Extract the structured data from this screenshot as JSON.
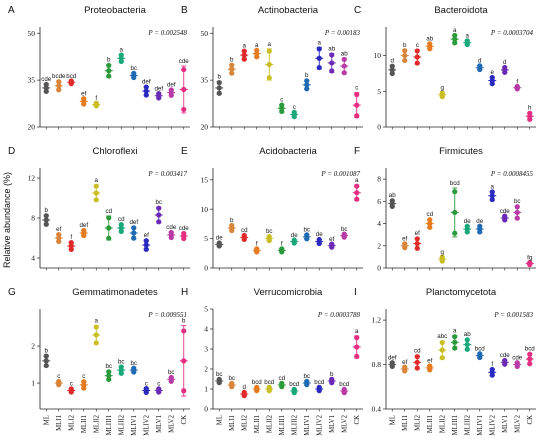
{
  "figure": {
    "ylabel": "Relative abundance (%)"
  },
  "treatments": [
    "ML",
    "MLI1",
    "MLI2",
    "MLII1",
    "MLII2",
    "MLIII1",
    "MLIII2",
    "MLIV1",
    "MLIV2",
    "MLV1",
    "MLV2",
    "CK"
  ],
  "colors": [
    "#555555",
    "#d8853a",
    "#e02a2a",
    "#e57a1e",
    "#c9bf24",
    "#2a9a3a",
    "#18a87a",
    "#1f6ab3",
    "#2a2ac0",
    "#6a2ab5",
    "#b93aa6",
    "#e52e82"
  ],
  "chart_data": [
    {
      "type": "scatter",
      "panel": "A",
      "title": "Proteobacteria",
      "p": "P = 0.002548",
      "ylim": [
        20,
        52
      ],
      "yticks": [
        20,
        35,
        50
      ],
      "means": [
        32.5,
        33.2,
        34.3,
        28.2,
        27.2,
        38.0,
        42.0,
        36.5,
        31.5,
        30.0,
        31.0,
        32.0
      ],
      "spread": [
        1.3,
        1.5,
        0.5,
        1.0,
        0.5,
        2.0,
        1.2,
        0.8,
        1.5,
        0.8,
        1.0,
        7.5
      ],
      "labels": [
        "cde",
        "bcde",
        "bcd",
        "ef",
        "f",
        "b",
        "a",
        "bc",
        "def",
        "def",
        "def",
        "cde"
      ]
    },
    {
      "type": "scatter",
      "panel": "B",
      "title": "Actinobacteria",
      "p": "P = 0.00183",
      "ylim": [
        20,
        52
      ],
      "yticks": [
        20,
        35,
        50
      ],
      "means": [
        32.5,
        38.5,
        43.0,
        43.5,
        40.0,
        26.0,
        24.0,
        33.5,
        42.0,
        40.5,
        39.5,
        27.0
      ],
      "spread": [
        2.0,
        1.5,
        1.5,
        1.2,
        5.0,
        1.2,
        0.8,
        1.5,
        3.5,
        3.0,
        2.5,
        4.0
      ],
      "labels": [
        "b",
        "b",
        "a",
        "a",
        "a",
        "c",
        "c",
        "b",
        "a",
        "ab",
        "ab",
        "c"
      ]
    },
    {
      "type": "scatter",
      "panel": "C",
      "title": "Bacteroidota",
      "p": "P = 0.0003704",
      "ylim": [
        0,
        14
      ],
      "yticks": [
        0,
        5,
        10
      ],
      "means": [
        8.0,
        10.0,
        9.8,
        11.3,
        4.5,
        12.3,
        11.8,
        8.3,
        6.5,
        8.0,
        5.5,
        1.5
      ],
      "spread": [
        0.6,
        0.8,
        1.0,
        0.4,
        0.3,
        0.6,
        0.3,
        0.3,
        0.5,
        0.4,
        0.2,
        0.5
      ],
      "labels": [
        "d",
        "b",
        "c",
        "ab",
        "g",
        "a",
        "a",
        "d",
        "e",
        "d",
        "f",
        "h"
      ]
    },
    {
      "type": "scatter",
      "panel": "D",
      "title": "Chloroflexi",
      "p": "P = 0.003417",
      "ylim": [
        3,
        13
      ],
      "yticks": [
        4,
        8,
        12
      ],
      "means": [
        7.8,
        6.0,
        5.2,
        6.5,
        10.5,
        7.0,
        7.0,
        6.5,
        5.3,
        8.3,
        6.3,
        6.2
      ],
      "spread": [
        0.5,
        0.4,
        0.4,
        0.3,
        0.8,
        1.2,
        0.4,
        0.6,
        0.5,
        0.8,
        0.3,
        0.3
      ],
      "labels": [
        "b",
        "ef",
        "f",
        "def",
        "a",
        "cd",
        "cd",
        "def",
        "ef",
        "bc",
        "cde",
        "cde"
      ]
    },
    {
      "type": "scatter",
      "panel": "E",
      "title": "Acidobacteria",
      "p": "P = 0.001087",
      "ylim": [
        0,
        17
      ],
      "yticks": [
        0,
        5,
        10,
        15
      ],
      "means": [
        4.0,
        6.8,
        5.2,
        3.0,
        5.0,
        3.0,
        4.5,
        5.3,
        4.5,
        3.8,
        5.5,
        12.8
      ],
      "spread": [
        0.3,
        0.5,
        0.4,
        0.3,
        0.4,
        0.3,
        0.3,
        0.4,
        0.4,
        0.3,
        0.3,
        1.3
      ],
      "labels": [
        "de",
        "b",
        "cd",
        "f",
        "bc",
        "f",
        "de",
        "bc",
        "de",
        "ef",
        "bc",
        "a"
      ]
    },
    {
      "type": "scatter",
      "panel": "F",
      "title": "Firmicutes",
      "p": "P = 0.0008455",
      "ylim": [
        0,
        9
      ],
      "yticks": [
        0,
        2,
        4,
        6,
        8
      ],
      "means": [
        5.8,
        2.0,
        2.2,
        4.0,
        0.8,
        5.0,
        3.5,
        3.5,
        6.5,
        4.5,
        5.0,
        0.4
      ],
      "spread": [
        0.3,
        0.2,
        0.5,
        0.4,
        0.2,
        2.2,
        0.3,
        0.3,
        0.4,
        0.2,
        0.6,
        0.1
      ],
      "labels": [
        "ab",
        "ef",
        "ef",
        "cd",
        "g",
        "bcd",
        "de",
        "de",
        "a",
        "cde",
        "bc",
        "fg"
      ]
    },
    {
      "type": "scatter",
      "panel": "G",
      "title": "Gemmatimonadetes",
      "p": "P = 0.009551",
      "ylim": [
        0.3,
        3.0
      ],
      "yticks": [
        1,
        2
      ],
      "means": [
        1.6,
        1.0,
        0.8,
        0.95,
        2.3,
        1.2,
        1.35,
        1.35,
        0.8,
        0.8,
        1.1,
        1.6
      ],
      "spread": [
        0.15,
        0.05,
        0.05,
        0.1,
        0.25,
        0.12,
        0.1,
        0.06,
        0.06,
        0.05,
        0.06,
        0.95
      ],
      "labels": [
        "b",
        "c",
        "c",
        "c",
        "a",
        "bc",
        "bc",
        "bc",
        "c",
        "c",
        "bc",
        "b"
      ]
    },
    {
      "type": "scatter",
      "panel": "H",
      "title": "Verrucomicrobia",
      "p": "P = 0.0003788",
      "ylim": [
        0,
        5
      ],
      "yticks": [
        0,
        1,
        2,
        3,
        4,
        5
      ],
      "means": [
        1.4,
        1.2,
        0.75,
        1.0,
        1.0,
        1.2,
        0.9,
        1.3,
        1.0,
        1.4,
        0.9,
        3.1
      ],
      "spread": [
        0.1,
        0.1,
        0.1,
        0.1,
        0.1,
        0.1,
        0.1,
        0.1,
        0.1,
        0.1,
        0.1,
        0.55
      ],
      "labels": [
        "bc",
        "bc",
        "d",
        "bcd",
        "bcd",
        "cd",
        "bcd",
        "bc",
        "bcd",
        "b",
        "bcd",
        "a"
      ]
    },
    {
      "type": "scatter",
      "panel": "I",
      "title": "Planctomycetota",
      "p": "P = 0.001583",
      "ylim": [
        0.4,
        1.3
      ],
      "yticks": [
        0.4,
        0.8,
        1.2
      ],
      "means": [
        0.8,
        0.76,
        0.82,
        0.77,
        0.93,
        1.0,
        0.98,
        0.88,
        0.73,
        0.82,
        0.8,
        0.85
      ],
      "spread": [
        0.02,
        0.02,
        0.06,
        0.02,
        0.08,
        0.06,
        0.05,
        0.02,
        0.03,
        0.02,
        0.02,
        0.05
      ],
      "labels": [
        "def",
        "ef",
        "cd",
        "ef",
        "abc",
        "a",
        "ab",
        "bcd",
        "f",
        "cde",
        "cde",
        "bcd"
      ]
    }
  ]
}
